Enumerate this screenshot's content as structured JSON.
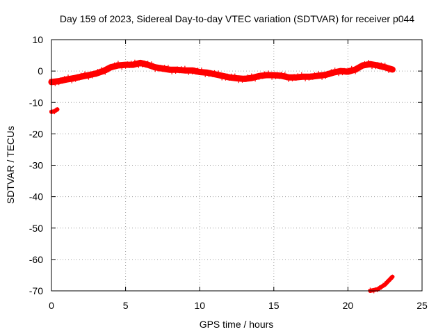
{
  "chart_data": {
    "type": "scatter",
    "title": "Day 159 of 2023, Sidereal Day-to-day VTEC variation (SDTVAR) for receiver p044",
    "xlabel": "GPS time / hours",
    "ylabel": "SDTVAR / TECUs",
    "xlim": [
      0,
      25
    ],
    "ylim": [
      -70,
      10
    ],
    "x_ticks": [
      0,
      5,
      10,
      15,
      20,
      25
    ],
    "x_tick_labels": [
      "0",
      "5",
      "10",
      "15",
      "20",
      "25"
    ],
    "y_ticks": [
      10,
      0,
      -10,
      -20,
      -30,
      -40,
      -50,
      -60,
      -70
    ],
    "y_tick_labels": [
      "10",
      "0",
      "-10",
      "-20",
      "-30",
      "-40",
      "-50",
      "-60",
      "-70"
    ],
    "grid": true,
    "marker": "+",
    "series_color": "#ff0000",
    "series": [
      {
        "name": "main band",
        "x": [
          0,
          0.5,
          1,
          1.5,
          2,
          2.5,
          3,
          3.5,
          4,
          4.5,
          5,
          5.5,
          6,
          6.5,
          7,
          7.5,
          8,
          8.5,
          9,
          9.5,
          10,
          10.5,
          11,
          11.5,
          12,
          12.5,
          13,
          13.5,
          14,
          14.5,
          15,
          15.5,
          16,
          16.5,
          17,
          17.5,
          18,
          18.5,
          19,
          19.5,
          20,
          20.5,
          21,
          21.5,
          22,
          22.5,
          23
        ],
        "y": [
          -3.5,
          -3.2,
          -2.7,
          -2.3,
          -1.8,
          -1.3,
          -0.8,
          0,
          1.2,
          1.8,
          2,
          2,
          2.6,
          2,
          1.2,
          0.8,
          0.4,
          0.4,
          0.2,
          0.2,
          -0.3,
          -0.5,
          -1,
          -1.5,
          -2,
          -2.3,
          -2.5,
          -2.2,
          -1.6,
          -1.3,
          -1.3,
          -1.5,
          -2,
          -2,
          -1.8,
          -1.8,
          -1.5,
          -1.2,
          -0.5,
          0,
          -0.2,
          0.5,
          1.8,
          2.2,
          1.8,
          1.2,
          0.5
        ]
      },
      {
        "name": "early segment",
        "x": [
          0,
          0.2,
          0.4
        ],
        "y": [
          -13,
          -12.8,
          -12.2
        ]
      },
      {
        "name": "late segment",
        "x": [
          21.5,
          22,
          22.5,
          22.8,
          23
        ],
        "y": [
          -70,
          -69.5,
          -68,
          -66.5,
          -65.5
        ]
      }
    ]
  }
}
